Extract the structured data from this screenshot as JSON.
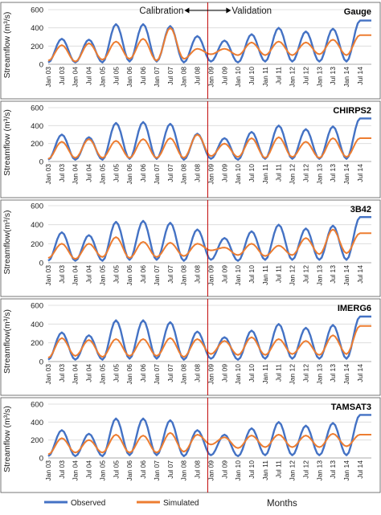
{
  "figure": {
    "calibration_label": "Calibration",
    "validation_label": "Validation",
    "xlabel": "Months",
    "legend": [
      "Observed",
      "Simulated"
    ]
  },
  "colors": {
    "observed": "#4472C4",
    "simulated": "#ED7D31",
    "split_line": "#C00000",
    "gridline": "#D9D9D9",
    "frame": "#555555"
  },
  "chart_data": [
    {
      "type": "line",
      "title": "Gauge",
      "ylabel": "Streamflow (m³/s)",
      "ylim": [
        0,
        600
      ],
      "yticks": [
        0,
        200,
        400,
        600
      ],
      "grid": "horizontal",
      "legend_position": "bottom",
      "x": [
        "Jan 03",
        "Jul 03",
        "Jan 04",
        "Jul 04",
        "Jan 05",
        "Jul 05",
        "Jan 06",
        "Jul 06",
        "Jan 07",
        "Jul 07",
        "Jan 08",
        "Jul 08",
        "Jan 09",
        "Jul 09",
        "Jan 10",
        "Jul 10",
        "Jan 11",
        "Jul 11",
        "Jan 12",
        "Jul 12",
        "Jan 13",
        "Jul 13",
        "Jan 14",
        "Jul 14"
      ],
      "series": [
        {
          "name": "Observed",
          "values": [
            20,
            280,
            20,
            270,
            20,
            440,
            30,
            440,
            30,
            420,
            20,
            310,
            30,
            260,
            20,
            330,
            30,
            400,
            30,
            360,
            30,
            390,
            30,
            480
          ]
        },
        {
          "name": "Simulated",
          "values": [
            40,
            210,
            30,
            230,
            50,
            250,
            60,
            280,
            40,
            400,
            60,
            170,
            110,
            170,
            100,
            240,
            100,
            250,
            100,
            240,
            110,
            270,
            100,
            320
          ]
        }
      ]
    },
    {
      "type": "line",
      "title": "CHIRPS2",
      "ylabel": "Streamflow (m³/s)",
      "ylim": [
        0,
        600
      ],
      "yticks": [
        0,
        200,
        400,
        600
      ],
      "grid": "horizontal",
      "legend_position": "bottom",
      "x": [
        "Jan 03",
        "Jul 03",
        "Jan 04",
        "Jul 04",
        "Jan 05",
        "Jul 05",
        "Jan 06",
        "Jul 06",
        "Jan 07",
        "Jul 07",
        "Jan 08",
        "Jul 08",
        "Jan 09",
        "Jul 09",
        "Jan 10",
        "Jul 10",
        "Jan 11",
        "Jul 11",
        "Jan 12",
        "Jul 12",
        "Jan 13",
        "Jul 13",
        "Jan 14",
        "Jul 14"
      ],
      "series": [
        {
          "name": "Observed",
          "values": [
            20,
            300,
            20,
            270,
            20,
            430,
            30,
            440,
            30,
            420,
            20,
            310,
            30,
            260,
            20,
            330,
            30,
            400,
            30,
            360,
            30,
            390,
            30,
            480
          ]
        },
        {
          "name": "Simulated",
          "values": [
            30,
            220,
            40,
            250,
            40,
            230,
            40,
            250,
            40,
            260,
            40,
            300,
            60,
            200,
            50,
            260,
            40,
            270,
            50,
            220,
            40,
            260,
            50,
            260
          ]
        }
      ]
    },
    {
      "type": "line",
      "title": "3B42",
      "ylabel": "Streamflow(m³/s)",
      "ylim": [
        0,
        600
      ],
      "yticks": [
        0,
        200,
        400,
        600
      ],
      "grid": "horizontal",
      "legend_position": "bottom",
      "x": [
        "Jan 03",
        "Jul 03",
        "Jan 04",
        "Jul 04",
        "Jan 05",
        "Jul 05",
        "Jan 06",
        "Jul 06",
        "Jan 07",
        "Jul 07",
        "Jan 08",
        "Jul 08",
        "Jan 09",
        "Jul 09",
        "Jan 10",
        "Jul 10",
        "Jan 11",
        "Jul 11",
        "Jan 12",
        "Jul 12",
        "Jan 13",
        "Jul 13",
        "Jan 14",
        "Jul 14"
      ],
      "series": [
        {
          "name": "Observed",
          "values": [
            20,
            320,
            20,
            290,
            20,
            430,
            30,
            440,
            30,
            420,
            20,
            350,
            30,
            260,
            20,
            330,
            30,
            400,
            30,
            360,
            30,
            390,
            30,
            480
          ]
        },
        {
          "name": "Simulated",
          "values": [
            50,
            200,
            40,
            200,
            60,
            270,
            50,
            220,
            60,
            210,
            70,
            200,
            130,
            160,
            80,
            200,
            70,
            180,
            80,
            260,
            90,
            350,
            100,
            310
          ]
        }
      ]
    },
    {
      "type": "line",
      "title": "IMERG6",
      "ylabel": "Streamflow(m³/s)",
      "ylim": [
        0,
        600
      ],
      "yticks": [
        0,
        200,
        400,
        600
      ],
      "grid": "horizontal",
      "legend_position": "bottom",
      "x": [
        "Jan 03",
        "Jul 03",
        "Jan 04",
        "Jul 04",
        "Jan 05",
        "Jul 05",
        "Jan 06",
        "Jul 06",
        "Jan 07",
        "Jul 07",
        "Jan 08",
        "Jul 08",
        "Jan 09",
        "Jul 09",
        "Jan 10",
        "Jul 10",
        "Jan 11",
        "Jul 11",
        "Jan 12",
        "Jul 12",
        "Jan 13",
        "Jul 13",
        "Jan 14",
        "Jul 14"
      ],
      "series": [
        {
          "name": "Observed",
          "values": [
            20,
            310,
            20,
            280,
            20,
            440,
            30,
            440,
            30,
            420,
            20,
            320,
            30,
            260,
            20,
            330,
            30,
            400,
            30,
            360,
            30,
            390,
            30,
            480
          ]
        },
        {
          "name": "Simulated",
          "values": [
            40,
            250,
            60,
            230,
            50,
            240,
            60,
            240,
            60,
            250,
            50,
            240,
            80,
            220,
            70,
            260,
            70,
            240,
            80,
            220,
            70,
            280,
            80,
            380
          ]
        }
      ]
    },
    {
      "type": "line",
      "title": "TAMSAT3",
      "ylabel": "Streamflow (m³/s)",
      "ylim": [
        0,
        600
      ],
      "yticks": [
        0,
        200,
        400,
        600
      ],
      "grid": "horizontal",
      "legend_position": "bottom",
      "x": [
        "Jan 03",
        "Jul 03",
        "Jan 04",
        "Jul 04",
        "Jan 05",
        "Jul 05",
        "Jan 06",
        "Jul 06",
        "Jan 07",
        "Jul 07",
        "Jan 08",
        "Jul 08",
        "Jan 09",
        "Jul 09",
        "Jan 10",
        "Jul 10",
        "Jan 11",
        "Jul 11",
        "Jan 12",
        "Jul 12",
        "Jan 13",
        "Jul 13",
        "Jan 14",
        "Jul 14"
      ],
      "series": [
        {
          "name": "Observed",
          "values": [
            20,
            310,
            20,
            270,
            20,
            440,
            30,
            440,
            30,
            420,
            20,
            310,
            30,
            260,
            20,
            330,
            30,
            400,
            30,
            360,
            30,
            390,
            30,
            480
          ]
        },
        {
          "name": "Simulated",
          "values": [
            40,
            220,
            60,
            200,
            60,
            260,
            60,
            250,
            60,
            280,
            70,
            260,
            150,
            230,
            110,
            250,
            120,
            260,
            120,
            250,
            120,
            270,
            130,
            260
          ]
        }
      ]
    }
  ]
}
